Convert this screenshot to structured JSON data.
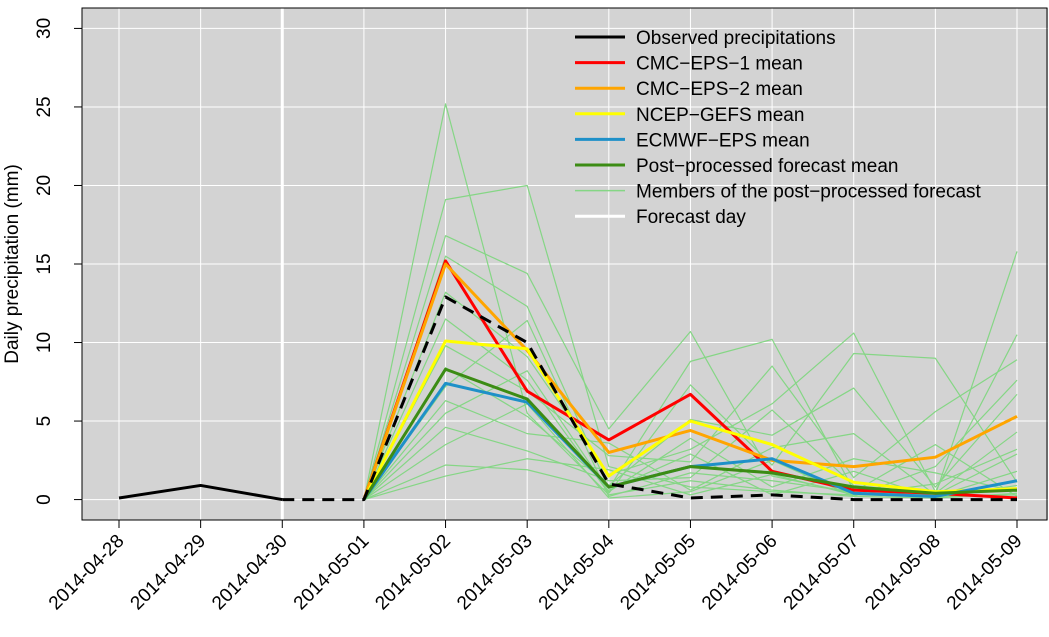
{
  "chart_data": {
    "type": "line",
    "y_label": "Daily precipitation (mm)",
    "categories": [
      "2014-04-28",
      "2014-04-29",
      "2014-04-30",
      "2014-05-01",
      "2014-05-02",
      "2014-05-03",
      "2014-05-04",
      "2014-05-05",
      "2014-05-06",
      "2014-05-07",
      "2014-05-08",
      "2014-05-09"
    ],
    "ylim": [
      -1.3,
      31.3
    ],
    "yticks": [
      0,
      5,
      10,
      15,
      20,
      25,
      30
    ],
    "grid": true,
    "background": "#d3d3d3",
    "legend_position": "top-right",
    "observed": {
      "name": "Observed precipitations",
      "color": "#000000",
      "values": [
        0.1,
        0.9,
        0,
        0,
        12.9,
        10,
        1,
        0.1,
        0.3,
        0,
        0,
        0
      ]
    },
    "series": [
      {
        "name": "CMC−EPS−1 mean",
        "color": "#ff0000",
        "values": [
          null,
          null,
          null,
          0,
          15.2,
          6.9,
          3.8,
          6.7,
          1.8,
          0.6,
          0.4,
          0.1
        ]
      },
      {
        "name": "CMC−EPS−2 mean",
        "color": "#ffa500",
        "values": [
          null,
          null,
          null,
          0,
          15,
          9.5,
          3,
          4.4,
          2.5,
          2.1,
          2.7,
          5.3
        ]
      },
      {
        "name": "NCEP−GEFS mean",
        "color": "#ffff00",
        "values": [
          null,
          null,
          null,
          0,
          10.1,
          9.6,
          1.5,
          5,
          3.5,
          1.1,
          0.5,
          0.7
        ]
      },
      {
        "name": "ECMWF−EPS mean",
        "color": "#1e90c8",
        "values": [
          null,
          null,
          null,
          0,
          7.4,
          6.2,
          0.8,
          2.1,
          2.6,
          0.4,
          0.2,
          1.2
        ]
      },
      {
        "name": "Post−processed forecast mean",
        "color": "#3c8c14",
        "values": [
          null,
          null,
          null,
          0,
          8.3,
          6.4,
          0.8,
          2.1,
          1.7,
          0.8,
          0.4,
          0.6
        ]
      }
    ],
    "members": {
      "name": "Members of the post−processed forecast",
      "color": "#85d685",
      "values": [
        [
          null,
          null,
          null,
          0,
          25.2,
          5.5,
          0.3,
          1.2,
          0.6,
          0.2,
          0.1,
          0.4
        ],
        [
          null,
          null,
          null,
          0,
          19.1,
          20,
          2.1,
          0.8,
          0.5,
          0.3,
          0.2,
          0.3
        ],
        [
          null,
          null,
          null,
          0,
          16.8,
          14.4,
          4.5,
          10.7,
          1.5,
          0.4,
          0.3,
          15.8
        ],
        [
          null,
          null,
          null,
          0,
          15.5,
          12.3,
          0.7,
          8.8,
          10.2,
          0.6,
          0.2,
          1.8
        ],
        [
          null,
          null,
          null,
          0,
          13.2,
          9.1,
          1.6,
          3.2,
          6.1,
          10.6,
          0.5,
          10.5
        ],
        [
          null,
          null,
          null,
          0,
          11.5,
          7.6,
          0.4,
          7.3,
          2.2,
          9.3,
          9,
          1.1
        ],
        [
          null,
          null,
          null,
          0,
          9.8,
          6.9,
          2.8,
          2.4,
          8.5,
          1.4,
          5.6,
          8.9
        ],
        [
          null,
          null,
          null,
          0,
          8.4,
          5.3,
          0.9,
          5.1,
          4.1,
          7.1,
          0.8,
          6.7
        ],
        [
          null,
          null,
          null,
          0,
          7.2,
          11.4,
          0.2,
          1.7,
          1.2,
          0.5,
          3.5,
          0.2
        ],
        [
          null,
          null,
          null,
          0,
          6.3,
          4.2,
          3.6,
          0.6,
          3.3,
          4.2,
          0.3,
          2.9
        ],
        [
          null,
          null,
          null,
          0,
          5.5,
          8.2,
          0.5,
          3.9,
          0.8,
          2.6,
          1.7,
          0.5
        ],
        [
          null,
          null,
          null,
          0,
          4.6,
          3.1,
          1.2,
          1.4,
          5.7,
          0.9,
          0.4,
          4.3
        ],
        [
          null,
          null,
          null,
          0,
          3.5,
          6.1,
          0.1,
          0.5,
          2.5,
          0.2,
          2.1,
          7.6
        ],
        [
          null,
          null,
          null,
          0,
          2.2,
          1.9,
          0.6,
          2.9,
          0.3,
          1.8,
          0.1,
          0.9
        ],
        [
          null,
          null,
          null,
          0,
          1.5,
          2.6,
          1.9,
          0.3,
          1.6,
          0.3,
          1,
          3.2
        ]
      ]
    },
    "forecast_day": {
      "name": "Forecast day",
      "x": "2014-04-30",
      "color": "#ffffff"
    }
  }
}
